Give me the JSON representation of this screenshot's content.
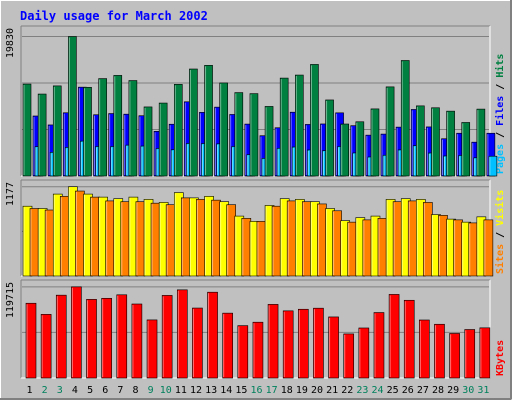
{
  "chart_data": {
    "type": "bar",
    "title": "Daily usage for March 2002",
    "categories": [
      "1",
      "2",
      "3",
      "4",
      "5",
      "6",
      "7",
      "8",
      "9",
      "10",
      "11",
      "12",
      "13",
      "14",
      "15",
      "16",
      "17",
      "18",
      "19",
      "20",
      "21",
      "22",
      "23",
      "24",
      "25",
      "26",
      "27",
      "28",
      "29",
      "30",
      "31"
    ],
    "weekend_days": [
      "2",
      "3",
      "9",
      "10",
      "16",
      "17",
      "23",
      "24",
      "30",
      "31"
    ],
    "panels": [
      {
        "name": "hits-panel",
        "max_label": "19830",
        "ylim": [
          0,
          19830
        ],
        "legend": [
          "Pages",
          "Files",
          "Hits"
        ],
        "series": [
          {
            "name": "Hits",
            "color": "#008040",
            "values": [
              13070,
              11650,
              12810,
              19830,
              12610,
              13850,
              14300,
              13570,
              9820,
              10370,
              13030,
              15210,
              15730,
              13230,
              11860,
              11710,
              9890,
              13920,
              14350,
              15860,
              10810,
              7390,
              7710,
              9540,
              12670,
              16420,
              9970,
              9700,
              9220,
              7610,
              9510
            ]
          },
          {
            "name": "Files",
            "color": "#0000ff",
            "values": [
              8530,
              7260,
              8990,
              12630,
              8710,
              8880,
              8790,
              8570,
              6350,
              7360,
              10550,
              9050,
              9790,
              8750,
              7380,
              5730,
              6860,
              9070,
              7330,
              7400,
              8980,
              7160,
              5810,
              5960,
              6950,
              9460,
              6980,
              5300,
              6080,
              4810,
              6080
            ]
          },
          {
            "name": "Pages",
            "color": "#00c0ff",
            "values": [
              4170,
              3360,
              4060,
              4960,
              4190,
              4190,
              4390,
              4260,
              3910,
              3730,
              4620,
              4610,
              4570,
              4190,
              3040,
              2500,
              3940,
              4120,
              3700,
              3600,
              4190,
              3280,
              2710,
              2950,
              3710,
              4310,
              3270,
              2850,
              2920,
              2590,
              2810
            ]
          }
        ]
      },
      {
        "name": "visits-panel",
        "max_label": "1177",
        "ylim": [
          0,
          1177
        ],
        "legend": [
          "Sites",
          "Visits"
        ],
        "series": [
          {
            "name": "Visits",
            "color": "#ffff00",
            "values": [
              920,
              890,
              1080,
              1177,
              1080,
              1040,
              1020,
              1040,
              1010,
              970,
              1100,
              1030,
              1050,
              980,
              790,
              720,
              930,
              1020,
              1010,
              980,
              890,
              730,
              770,
              790,
              1010,
              1020,
              1010,
              810,
              750,
              710,
              780
            ]
          },
          {
            "name": "Sites",
            "color": "#ff8000",
            "values": [
              890,
              870,
              1050,
              1120,
              1040,
              990,
              980,
              980,
              960,
              940,
              1030,
              1010,
              1000,
              940,
              760,
              720,
              920,
              990,
              980,
              950,
              860,
              710,
              740,
              760,
              980,
              990,
              970,
              800,
              740,
              700,
              740
            ]
          }
        ]
      },
      {
        "name": "kbytes-panel",
        "max_label": "119715",
        "ylim": [
          0,
          119715
        ],
        "legend": [
          "KBytes"
        ],
        "series": [
          {
            "name": "KBytes",
            "color": "#ff0000",
            "values": [
              98200,
              83600,
              108800,
              119715,
              103300,
              104700,
              109300,
              97200,
              76300,
              108500,
              115800,
              91900,
              112700,
              85200,
              68800,
              73300,
              96700,
              88200,
              90300,
              91700,
              80200,
              57900,
              65700,
              86000,
              109800,
              102100,
              76200,
              70600,
              58500,
              63700,
              65900
            ]
          }
        ]
      }
    ]
  },
  "colors": {
    "background": "#c0c0c0",
    "title": "#0000ff",
    "weekday_label": "#000000",
    "weekend_label": "#00805c",
    "gridline": "#808080"
  }
}
